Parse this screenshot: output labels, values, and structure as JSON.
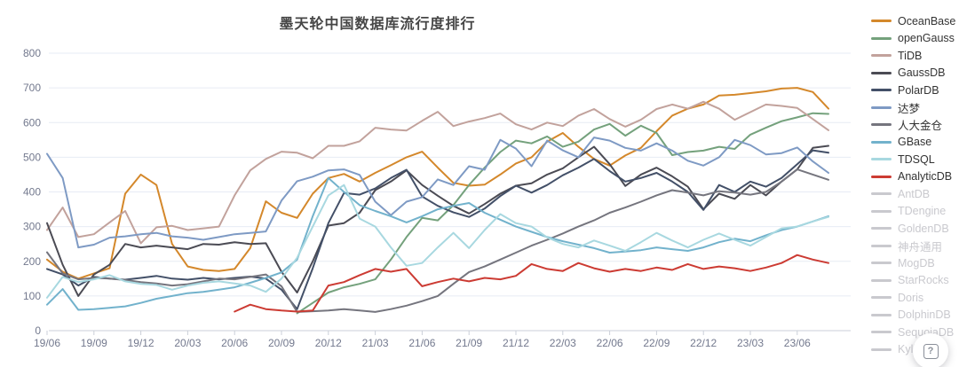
{
  "help_button": {
    "glyph": "?"
  },
  "chart_data": {
    "type": "line",
    "title": "墨天轮中国数据库流行度排行",
    "xlabel": "",
    "ylabel": "",
    "ylim": [
      0,
      800
    ],
    "y_ticks": [
      0,
      100,
      200,
      300,
      400,
      500,
      600,
      700,
      800
    ],
    "x_tick_every": 3,
    "grid": true,
    "legend_position": "right",
    "inactive_color": "#C9C9CE",
    "axis_text_color": "#73798E",
    "grid_color": "#E7EBF4",
    "axis_line_color": "#CBCFD8",
    "x": [
      "19/06",
      "19/07",
      "19/08",
      "19/09",
      "19/10",
      "19/11",
      "19/12",
      "20/01",
      "20/02",
      "20/03",
      "20/04",
      "20/05",
      "20/06",
      "20/07",
      "20/08",
      "20/09",
      "20/10",
      "20/11",
      "20/12",
      "21/01",
      "21/02",
      "21/03",
      "21/04",
      "21/05",
      "21/06",
      "21/07",
      "21/08",
      "21/09",
      "21/10",
      "21/11",
      "21/12",
      "22/01",
      "22/02",
      "22/03",
      "22/04",
      "22/05",
      "22/06",
      "22/07",
      "22/08",
      "22/09",
      "22/10",
      "22/11",
      "22/12",
      "23/01",
      "23/02",
      "23/03",
      "23/04",
      "23/05",
      "23/06",
      "23/07",
      "23/08"
    ],
    "series": [
      {
        "name": "OceanBase",
        "color": "#D4882B",
        "active": true,
        "values": [
          205,
          170,
          150,
          165,
          180,
          395,
          450,
          420,
          250,
          185,
          175,
          172,
          178,
          238,
          373,
          340,
          325,
          395,
          440,
          452,
          430,
          455,
          477,
          500,
          516,
          470,
          426,
          418,
          421,
          450,
          482,
          500,
          545,
          570,
          530,
          495,
          476,
          505,
          527,
          575,
          620,
          640,
          652,
          678,
          680,
          685,
          690,
          698,
          700,
          688,
          640
        ]
      },
      {
        "name": "openGauss",
        "color": "#74A17C",
        "active": true,
        "values": [
          null,
          null,
          null,
          null,
          null,
          null,
          null,
          null,
          null,
          null,
          null,
          null,
          null,
          null,
          null,
          null,
          50,
          80,
          110,
          125,
          135,
          148,
          205,
          270,
          325,
          318,
          362,
          420,
          470,
          515,
          548,
          540,
          560,
          530,
          545,
          580,
          596,
          562,
          591,
          570,
          506,
          515,
          519,
          530,
          524,
          565,
          585,
          604,
          615,
          627,
          625
        ]
      },
      {
        "name": "TiDB",
        "color": "#C2A29C",
        "active": true,
        "values": [
          290,
          355,
          270,
          278,
          312,
          345,
          252,
          298,
          302,
          290,
          295,
          300,
          390,
          462,
          495,
          516,
          513,
          497,
          533,
          533,
          546,
          585,
          580,
          577,
          605,
          631,
          590,
          603,
          613,
          626,
          595,
          580,
          600,
          590,
          620,
          639,
          610,
          588,
          608,
          639,
          652,
          640,
          660,
          640,
          608,
          630,
          652,
          648,
          642,
          610,
          578
        ]
      },
      {
        "name": "GaussDB",
        "color": "#4B4B54",
        "active": true,
        "values": [
          310,
          190,
          100,
          162,
          190,
          250,
          240,
          245,
          240,
          235,
          250,
          248,
          255,
          250,
          252,
          170,
          110,
          200,
          303,
          310,
          340,
          405,
          430,
          462,
          420,
          389,
          360,
          338,
          365,
          395,
          418,
          425,
          450,
          468,
          500,
          530,
          480,
          417,
          450,
          470,
          445,
          415,
          350,
          395,
          380,
          420,
          390,
          430,
          465,
          527,
          533
        ]
      },
      {
        "name": "PolarDB",
        "color": "#435068",
        "active": true,
        "values": [
          178,
          162,
          130,
          155,
          150,
          147,
          152,
          158,
          150,
          147,
          152,
          148,
          152,
          156,
          150,
          118,
          62,
          180,
          310,
          397,
          392,
          410,
          440,
          464,
          387,
          360,
          341,
          328,
          352,
          388,
          418,
          398,
          420,
          448,
          470,
          495,
          460,
          430,
          440,
          455,
          430,
          400,
          348,
          420,
          400,
          430,
          415,
          440,
          480,
          520,
          513
        ]
      },
      {
        "name": "达梦",
        "color": "#7E9AC4",
        "active": true,
        "values": [
          510,
          440,
          240,
          248,
          268,
          272,
          278,
          282,
          272,
          268,
          262,
          270,
          278,
          282,
          286,
          375,
          431,
          444,
          462,
          465,
          449,
          372,
          333,
          372,
          385,
          436,
          420,
          474,
          464,
          550,
          525,
          474,
          548,
          520,
          500,
          557,
          548,
          527,
          519,
          540,
          519,
          490,
          476,
          500,
          550,
          535,
          508,
          512,
          528,
          488,
          455
        ]
      },
      {
        "name": "人大金仓",
        "color": "#75757E",
        "active": true,
        "values": [
          226,
          165,
          148,
          152,
          150,
          146,
          140,
          136,
          130,
          134,
          142,
          150,
          148,
          155,
          162,
          128,
          54,
          56,
          58,
          62,
          58,
          54,
          62,
          72,
          85,
          100,
          135,
          169,
          185,
          205,
          225,
          245,
          262,
          280,
          300,
          318,
          340,
          355,
          372,
          390,
          405,
          398,
          390,
          402,
          398,
          392,
          400,
          430,
          465,
          450,
          435
        ]
      },
      {
        "name": "GBase",
        "color": "#72B2CC",
        "active": true,
        "values": [
          75,
          120,
          60,
          62,
          66,
          70,
          80,
          92,
          100,
          108,
          112,
          118,
          125,
          138,
          152,
          168,
          205,
          330,
          440,
          400,
          362,
          345,
          330,
          312,
          330,
          350,
          360,
          368,
          340,
          320,
          300,
          285,
          270,
          258,
          248,
          238,
          225,
          228,
          232,
          240,
          235,
          230,
          240,
          255,
          265,
          258,
          275,
          290,
          300,
          315,
          330
        ]
      },
      {
        "name": "TDSQL",
        "color": "#A8D8E0",
        "active": true,
        "values": [
          95,
          155,
          140,
          148,
          160,
          142,
          135,
          132,
          118,
          130,
          138,
          142,
          136,
          130,
          112,
          150,
          210,
          300,
          390,
          420,
          323,
          300,
          240,
          187,
          195,
          240,
          282,
          238,
          290,
          336,
          310,
          300,
          269,
          250,
          240,
          260,
          245,
          230,
          255,
          282,
          260,
          240,
          262,
          280,
          262,
          245,
          270,
          295,
          300,
          315,
          328
        ]
      },
      {
        "name": "AnalyticDB",
        "color": "#CC3B33",
        "active": true,
        "values": [
          null,
          null,
          null,
          null,
          null,
          null,
          null,
          null,
          null,
          null,
          null,
          null,
          55,
          75,
          62,
          58,
          55,
          58,
          130,
          140,
          160,
          178,
          170,
          178,
          128,
          140,
          150,
          142,
          152,
          148,
          158,
          192,
          178,
          172,
          195,
          180,
          170,
          178,
          172,
          182,
          175,
          192,
          178,
          185,
          180,
          172,
          182,
          195,
          218,
          205,
          195
        ]
      },
      {
        "name": "AntDB",
        "color": "#C9C9CE",
        "active": false,
        "values": []
      },
      {
        "name": "TDengine",
        "color": "#C9C9CE",
        "active": false,
        "values": []
      },
      {
        "name": "GoldenDB",
        "color": "#C9C9CE",
        "active": false,
        "values": []
      },
      {
        "name": "神舟通用",
        "color": "#C9C9CE",
        "active": false,
        "values": []
      },
      {
        "name": "MogDB",
        "color": "#C9C9CE",
        "active": false,
        "values": []
      },
      {
        "name": "StarRocks",
        "color": "#C9C9CE",
        "active": false,
        "values": []
      },
      {
        "name": "Doris",
        "color": "#C9C9CE",
        "active": false,
        "values": []
      },
      {
        "name": "DolphinDB",
        "color": "#C9C9CE",
        "active": false,
        "values": []
      },
      {
        "name": "SequoiaDB",
        "color": "#C9C9CE",
        "active": false,
        "values": []
      },
      {
        "name": "Kyligence",
        "color": "#C9C9CE",
        "active": false,
        "values": []
      }
    ]
  }
}
